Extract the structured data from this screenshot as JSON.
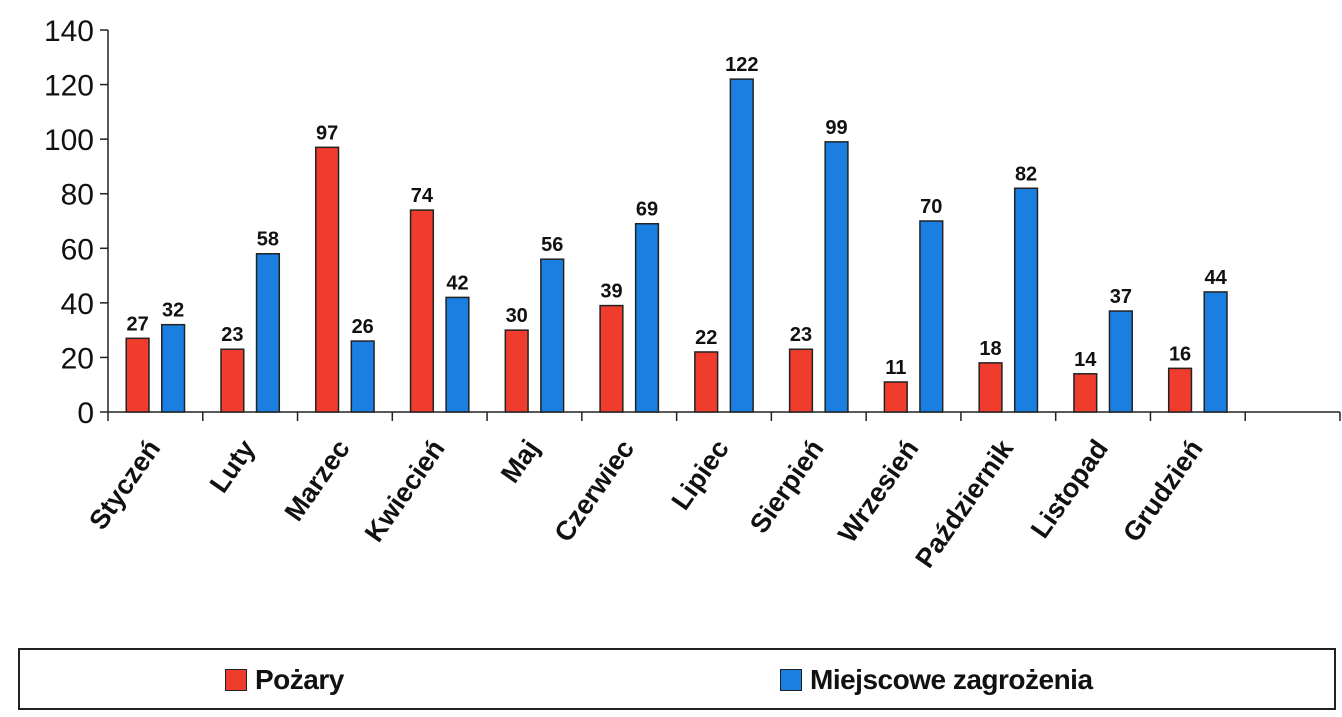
{
  "chart_data": {
    "type": "bar",
    "categories": [
      "Styczeń",
      "Luty",
      "Marzec",
      "Kwiecień",
      "Maj",
      "Czerwiec",
      "Lipiec",
      "Sierpień",
      "Wrzesień",
      "Październik",
      "Listopad",
      "Grudzień"
    ],
    "series": [
      {
        "name": "Pożary",
        "color": "#f03c2c",
        "values": [
          27,
          23,
          97,
          74,
          30,
          39,
          22,
          23,
          11,
          18,
          14,
          16
        ]
      },
      {
        "name": "Miejscowe zagrożenia",
        "color": "#1a7fe0",
        "values": [
          32,
          58,
          26,
          42,
          56,
          69,
          122,
          99,
          70,
          82,
          37,
          44
        ]
      }
    ],
    "yticks": [
      "0",
      "20",
      "40",
      "60",
      "80",
      "100",
      "120",
      "140"
    ],
    "ylim": [
      0,
      140
    ],
    "grid": false,
    "legend_position": "bottom"
  }
}
